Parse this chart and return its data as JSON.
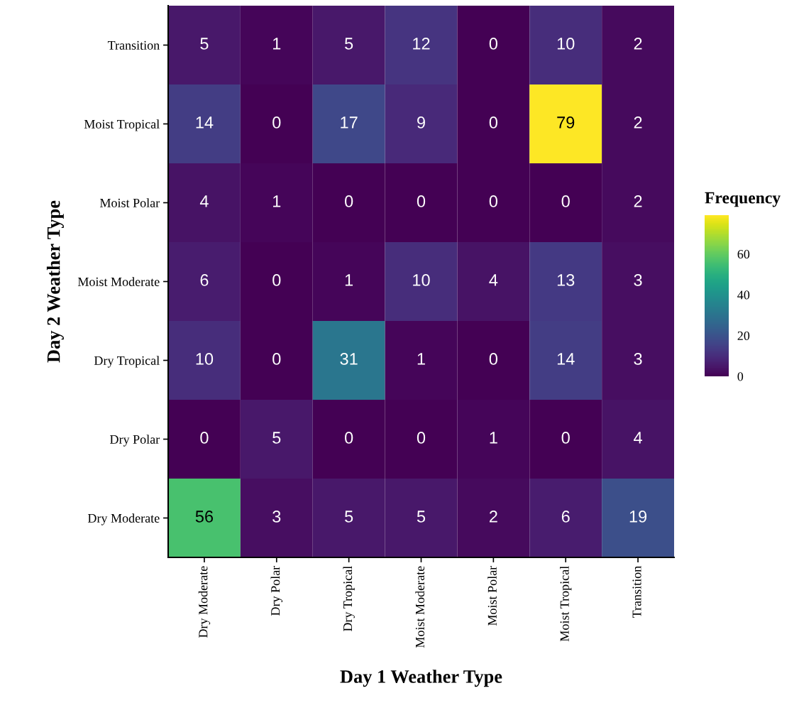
{
  "chart_data": {
    "type": "heatmap",
    "xlabel": "Day 1 Weather Type",
    "ylabel": "Day 2 Weather Type",
    "clabel": "Frequency",
    "categories": [
      "Dry Moderate",
      "Dry Polar",
      "Dry Tropical",
      "Moist Moderate",
      "Moist Polar",
      "Moist Tropical",
      "Transition"
    ],
    "y_categories": [
      "Transition",
      "Moist Tropical",
      "Moist Polar",
      "Moist Moderate",
      "Dry Tropical",
      "Dry Polar",
      "Dry Moderate"
    ],
    "cells": [
      [
        5,
        1,
        5,
        12,
        0,
        10,
        2
      ],
      [
        14,
        0,
        17,
        9,
        0,
        79,
        2
      ],
      [
        4,
        1,
        0,
        0,
        0,
        0,
        2
      ],
      [
        6,
        0,
        1,
        10,
        4,
        13,
        3
      ],
      [
        10,
        0,
        31,
        1,
        0,
        14,
        3
      ],
      [
        0,
        5,
        0,
        0,
        1,
        0,
        4
      ],
      [
        56,
        3,
        5,
        5,
        2,
        6,
        19
      ]
    ],
    "clim": [
      0,
      79
    ],
    "cticks": [
      0,
      20,
      40,
      60
    ],
    "data_labels": true,
    "grid": false
  }
}
